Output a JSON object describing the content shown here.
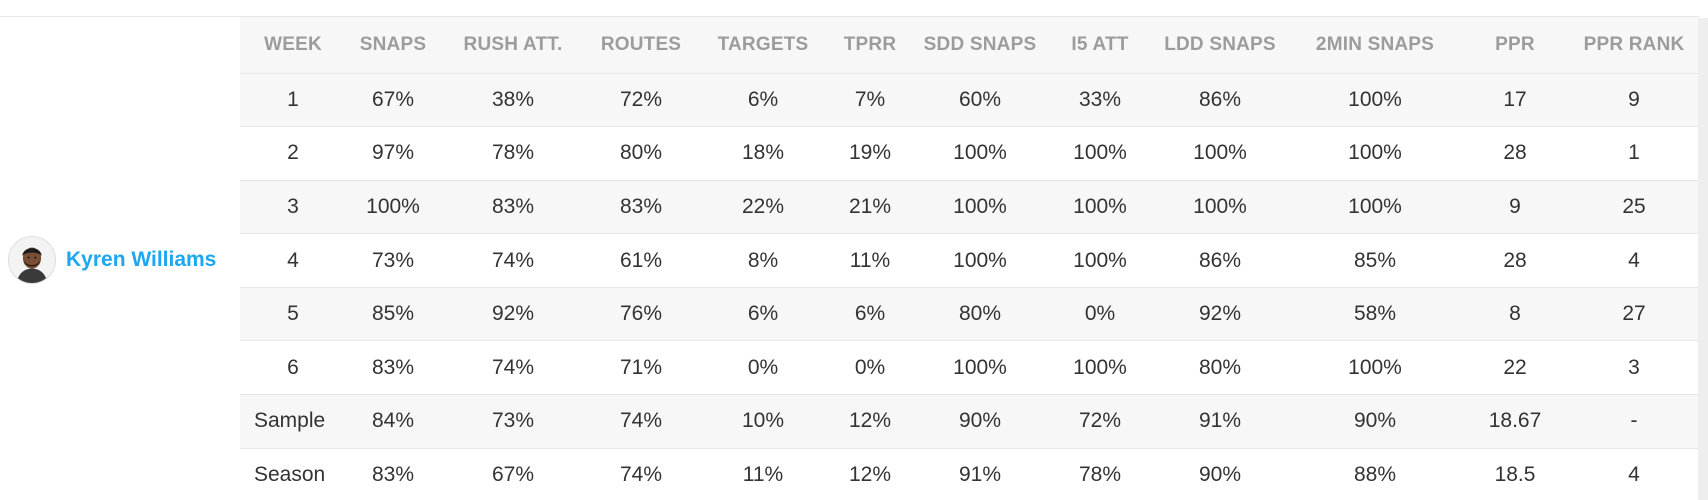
{
  "player": {
    "name": "Kyren Williams",
    "avatar_icon": "player-headshot"
  },
  "table": {
    "headers": [
      "WEEK",
      "SNAPS",
      "RUSH ATT.",
      "ROUTES",
      "TARGETS",
      "TPRR",
      "SDD SNAPS",
      "I5 ATT",
      "LDD SNAPS",
      "2MIN SNAPS",
      "PPR",
      "PPR RANK"
    ],
    "rows": [
      [
        "1",
        "67%",
        "38%",
        "72%",
        "6%",
        "7%",
        "60%",
        "33%",
        "86%",
        "100%",
        "17",
        "9"
      ],
      [
        "2",
        "97%",
        "78%",
        "80%",
        "18%",
        "19%",
        "100%",
        "100%",
        "100%",
        "100%",
        "28",
        "1"
      ],
      [
        "3",
        "100%",
        "83%",
        "83%",
        "22%",
        "21%",
        "100%",
        "100%",
        "100%",
        "100%",
        "9",
        "25"
      ],
      [
        "4",
        "73%",
        "74%",
        "61%",
        "8%",
        "11%",
        "100%",
        "100%",
        "86%",
        "85%",
        "28",
        "4"
      ],
      [
        "5",
        "85%",
        "92%",
        "76%",
        "6%",
        "6%",
        "80%",
        "0%",
        "92%",
        "58%",
        "8",
        "27"
      ],
      [
        "6",
        "83%",
        "74%",
        "71%",
        "0%",
        "0%",
        "100%",
        "100%",
        "80%",
        "100%",
        "22",
        "3"
      ],
      [
        "Sample",
        "84%",
        "73%",
        "74%",
        "10%",
        "12%",
        "90%",
        "72%",
        "91%",
        "90%",
        "18.67",
        "-"
      ],
      [
        "Season",
        "83%",
        "67%",
        "74%",
        "11%",
        "12%",
        "91%",
        "78%",
        "90%",
        "88%",
        "18.5",
        "4"
      ]
    ]
  },
  "colors": {
    "player_name": "#1ea7ef",
    "header_text": "#9c9c9c",
    "row_stripe": "#f7f7f7",
    "cell_text": "#333333"
  }
}
